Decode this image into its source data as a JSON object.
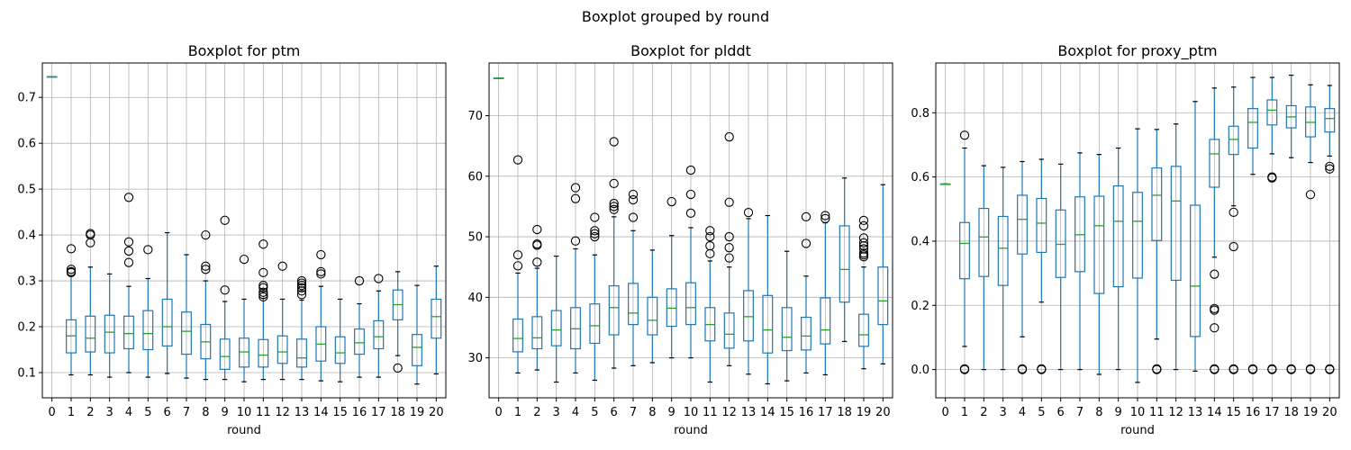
{
  "figure": {
    "suptitle": "Boxplot grouped by round",
    "colors": {
      "box": "#1f77b4",
      "median": "#2ca02c",
      "grid": "#b0b0b0",
      "flier": "#000000"
    }
  },
  "chart_data": [
    {
      "type": "boxplot",
      "title": "Boxplot for ptm",
      "xlabel": "round",
      "ylabel": "",
      "categories": [
        "0",
        "1",
        "2",
        "3",
        "4",
        "5",
        "6",
        "7",
        "8",
        "9",
        "10",
        "11",
        "12",
        "13",
        "14",
        "15",
        "16",
        "17",
        "18",
        "19",
        "20"
      ],
      "ylim": [
        0.045,
        0.775
      ],
      "yticks": [
        0.1,
        0.2,
        0.3,
        0.4,
        0.5,
        0.6,
        0.7
      ],
      "ytick_labels": [
        "0.1",
        "0.2",
        "0.3",
        "0.4",
        "0.5",
        "0.6",
        "0.7"
      ],
      "grid": true,
      "boxes": [
        {
          "whislo": 0.745,
          "q1": 0.745,
          "med": 0.745,
          "q3": 0.745,
          "whishi": 0.745,
          "fliers": []
        },
        {
          "whislo": 0.095,
          "q1": 0.143,
          "med": 0.18,
          "q3": 0.215,
          "whishi": 0.31,
          "fliers": [
            0.318,
            0.32,
            0.325,
            0.37
          ]
        },
        {
          "whislo": 0.095,
          "q1": 0.145,
          "med": 0.175,
          "q3": 0.223,
          "whishi": 0.33,
          "fliers": [
            0.383,
            0.4,
            0.403
          ]
        },
        {
          "whislo": 0.09,
          "q1": 0.143,
          "med": 0.188,
          "q3": 0.225,
          "whishi": 0.315,
          "fliers": []
        },
        {
          "whislo": 0.1,
          "q1": 0.152,
          "med": 0.185,
          "q3": 0.223,
          "whishi": 0.288,
          "fliers": [
            0.34,
            0.365,
            0.385,
            0.482
          ]
        },
        {
          "whislo": 0.09,
          "q1": 0.15,
          "med": 0.185,
          "q3": 0.235,
          "whishi": 0.305,
          "fliers": [
            0.368
          ]
        },
        {
          "whislo": 0.098,
          "q1": 0.158,
          "med": 0.2,
          "q3": 0.26,
          "whishi": 0.405,
          "fliers": []
        },
        {
          "whislo": 0.088,
          "q1": 0.14,
          "med": 0.19,
          "q3": 0.232,
          "whishi": 0.357,
          "fliers": []
        },
        {
          "whislo": 0.085,
          "q1": 0.13,
          "med": 0.167,
          "q3": 0.205,
          "whishi": 0.3,
          "fliers": [
            0.325,
            0.332,
            0.4
          ]
        },
        {
          "whislo": 0.085,
          "q1": 0.107,
          "med": 0.135,
          "q3": 0.173,
          "whishi": 0.255,
          "fliers": [
            0.28,
            0.432
          ]
        },
        {
          "whislo": 0.08,
          "q1": 0.112,
          "med": 0.145,
          "q3": 0.175,
          "whishi": 0.26,
          "fliers": [
            0.347
          ]
        },
        {
          "whislo": 0.085,
          "q1": 0.112,
          "med": 0.138,
          "q3": 0.172,
          "whishi": 0.262,
          "fliers": [
            0.265,
            0.27,
            0.275,
            0.285,
            0.29,
            0.318,
            0.38
          ]
        },
        {
          "whislo": 0.085,
          "q1": 0.12,
          "med": 0.145,
          "q3": 0.18,
          "whishi": 0.26,
          "fliers": [
            0.332
          ]
        },
        {
          "whislo": 0.085,
          "q1": 0.112,
          "med": 0.132,
          "q3": 0.173,
          "whishi": 0.258,
          "fliers": [
            0.27,
            0.278,
            0.285,
            0.29,
            0.295,
            0.3
          ]
        },
        {
          "whislo": 0.082,
          "q1": 0.125,
          "med": 0.162,
          "q3": 0.2,
          "whishi": 0.288,
          "fliers": [
            0.315,
            0.32,
            0.357
          ]
        },
        {
          "whislo": 0.08,
          "q1": 0.12,
          "med": 0.143,
          "q3": 0.178,
          "whishi": 0.26,
          "fliers": []
        },
        {
          "whislo": 0.09,
          "q1": 0.14,
          "med": 0.165,
          "q3": 0.195,
          "whishi": 0.25,
          "fliers": [
            0.3
          ]
        },
        {
          "whislo": 0.09,
          "q1": 0.152,
          "med": 0.178,
          "q3": 0.213,
          "whishi": 0.278,
          "fliers": [
            0.305
          ]
        },
        {
          "whislo": 0.137,
          "q1": 0.215,
          "med": 0.248,
          "q3": 0.28,
          "whishi": 0.32,
          "fliers": [
            0.11
          ]
        },
        {
          "whislo": 0.075,
          "q1": 0.115,
          "med": 0.155,
          "q3": 0.183,
          "whishi": 0.29,
          "fliers": []
        },
        {
          "whislo": 0.097,
          "q1": 0.175,
          "med": 0.222,
          "q3": 0.26,
          "whishi": 0.332,
          "fliers": []
        }
      ]
    },
    {
      "type": "boxplot",
      "title": "Boxplot for plddt",
      "xlabel": "round",
      "ylabel": "",
      "categories": [
        "0",
        "1",
        "2",
        "3",
        "4",
        "5",
        "6",
        "7",
        "8",
        "9",
        "10",
        "11",
        "12",
        "13",
        "14",
        "15",
        "16",
        "17",
        "18",
        "19",
        "20"
      ],
      "ylim": [
        23.4,
        78.7
      ],
      "yticks": [
        30,
        40,
        50,
        60,
        70
      ],
      "ytick_labels": [
        "30",
        "40",
        "50",
        "60",
        "70"
      ],
      "grid": true,
      "boxes": [
        {
          "whislo": 76.2,
          "q1": 76.2,
          "med": 76.2,
          "q3": 76.2,
          "whishi": 76.2,
          "fliers": []
        },
        {
          "whislo": 27.5,
          "q1": 31.0,
          "med": 33.2,
          "q3": 36.4,
          "whishi": 44.0,
          "fliers": [
            45.2,
            47.0,
            62.7
          ]
        },
        {
          "whislo": 28.0,
          "q1": 31.5,
          "med": 33.3,
          "q3": 36.8,
          "whishi": 44.8,
          "fliers": [
            45.8,
            48.6,
            48.8,
            51.2
          ]
        },
        {
          "whislo": 26.0,
          "q1": 32.0,
          "med": 34.6,
          "q3": 37.8,
          "whishi": 46.8,
          "fliers": []
        },
        {
          "whislo": 27.5,
          "q1": 31.5,
          "med": 34.8,
          "q3": 38.3,
          "whishi": 48.0,
          "fliers": [
            49.3,
            56.3,
            58.1
          ]
        },
        {
          "whislo": 26.3,
          "q1": 32.4,
          "med": 35.3,
          "q3": 38.9,
          "whishi": 47.0,
          "fliers": [
            50.0,
            50.5,
            51.0,
            53.2
          ]
        },
        {
          "whislo": 28.3,
          "q1": 33.8,
          "med": 38.3,
          "q3": 41.9,
          "whishi": 53.3,
          "fliers": [
            54.5,
            55.0,
            55.5,
            58.8,
            65.7
          ]
        },
        {
          "whislo": 28.7,
          "q1": 35.5,
          "med": 37.4,
          "q3": 42.3,
          "whishi": 51.0,
          "fliers": [
            53.2,
            56.1,
            57.0
          ]
        },
        {
          "whislo": 29.2,
          "q1": 33.8,
          "med": 36.2,
          "q3": 40.0,
          "whishi": 47.8,
          "fliers": []
        },
        {
          "whislo": 30.0,
          "q1": 35.2,
          "med": 38.2,
          "q3": 41.4,
          "whishi": 50.2,
          "fliers": [
            55.8
          ]
        },
        {
          "whislo": 30.0,
          "q1": 35.5,
          "med": 38.3,
          "q3": 42.4,
          "whishi": 51.5,
          "fliers": [
            53.9,
            57.0,
            61.0
          ]
        },
        {
          "whislo": 26.0,
          "q1": 32.8,
          "med": 35.5,
          "q3": 38.3,
          "whishi": 46.0,
          "fliers": [
            47.2,
            48.5,
            50.0,
            51.0
          ]
        },
        {
          "whislo": 28.7,
          "q1": 31.6,
          "med": 33.9,
          "q3": 37.4,
          "whishi": 45.0,
          "fliers": [
            46.5,
            48.2,
            50.0,
            55.7,
            66.5
          ]
        },
        {
          "whislo": 27.3,
          "q1": 32.8,
          "med": 36.8,
          "q3": 41.1,
          "whishi": 53.0,
          "fliers": [
            54.0
          ]
        },
        {
          "whislo": 25.7,
          "q1": 30.8,
          "med": 34.6,
          "q3": 40.3,
          "whishi": 53.5,
          "fliers": []
        },
        {
          "whislo": 26.2,
          "q1": 31.2,
          "med": 33.4,
          "q3": 38.3,
          "whishi": 47.6,
          "fliers": []
        },
        {
          "whislo": 27.5,
          "q1": 31.3,
          "med": 33.6,
          "q3": 36.7,
          "whishi": 43.5,
          "fliers": [
            48.9,
            53.3
          ]
        },
        {
          "whislo": 27.2,
          "q1": 32.3,
          "med": 34.6,
          "q3": 39.9,
          "whishi": 52.3,
          "fliers": [
            53.0,
            53.5
          ]
        },
        {
          "whislo": 32.7,
          "q1": 39.2,
          "med": 44.6,
          "q3": 51.8,
          "whishi": 59.7,
          "fliers": []
        },
        {
          "whislo": 28.2,
          "q1": 31.9,
          "med": 33.8,
          "q3": 37.2,
          "whishi": 45.0,
          "fliers": [
            46.7,
            47.0,
            47.3,
            48.0,
            48.5,
            49.0,
            49.8,
            51.8,
            52.7
          ]
        },
        {
          "whislo": 29.0,
          "q1": 35.5,
          "med": 39.4,
          "q3": 45.0,
          "whishi": 58.6,
          "fliers": []
        }
      ]
    },
    {
      "type": "boxplot",
      "title": "Boxplot for proxy_ptm",
      "xlabel": "round",
      "ylabel": "",
      "categories": [
        "0",
        "1",
        "2",
        "3",
        "4",
        "5",
        "6",
        "7",
        "8",
        "9",
        "10",
        "11",
        "12",
        "13",
        "14",
        "15",
        "16",
        "17",
        "18",
        "19",
        "20"
      ],
      "ylim": [
        -0.088,
        0.955
      ],
      "yticks": [
        0.0,
        0.2,
        0.4,
        0.6,
        0.8
      ],
      "ytick_labels": [
        "0.0",
        "0.2",
        "0.4",
        "0.6",
        "0.8"
      ],
      "grid": true,
      "boxes": [
        {
          "whislo": 0.578,
          "q1": 0.578,
          "med": 0.578,
          "q3": 0.578,
          "whishi": 0.578,
          "fliers": []
        },
        {
          "whislo": 0.072,
          "q1": 0.283,
          "med": 0.393,
          "q3": 0.458,
          "whishi": 0.69,
          "fliers": [
            0.0,
            0.002,
            0.73
          ]
        },
        {
          "whislo": 0.0,
          "q1": 0.29,
          "med": 0.413,
          "q3": 0.502,
          "whishi": 0.635,
          "fliers": []
        },
        {
          "whislo": 0.0,
          "q1": 0.262,
          "med": 0.378,
          "q3": 0.477,
          "whishi": 0.63,
          "fliers": []
        },
        {
          "whislo": 0.102,
          "q1": 0.36,
          "med": 0.468,
          "q3": 0.543,
          "whishi": 0.648,
          "fliers": [
            0.0,
            0.002
          ]
        },
        {
          "whislo": 0.21,
          "q1": 0.365,
          "med": 0.456,
          "q3": 0.533,
          "whishi": 0.655,
          "fliers": [
            0.0,
            0.002
          ]
        },
        {
          "whislo": 0.0,
          "q1": 0.287,
          "med": 0.39,
          "q3": 0.497,
          "whishi": 0.64,
          "fliers": []
        },
        {
          "whislo": 0.0,
          "q1": 0.305,
          "med": 0.42,
          "q3": 0.538,
          "whishi": 0.675,
          "fliers": []
        },
        {
          "whislo": -0.015,
          "q1": 0.237,
          "med": 0.448,
          "q3": 0.54,
          "whishi": 0.67,
          "fliers": []
        },
        {
          "whislo": 0.0,
          "q1": 0.258,
          "med": 0.462,
          "q3": 0.572,
          "whishi": 0.69,
          "fliers": []
        },
        {
          "whislo": -0.04,
          "q1": 0.285,
          "med": 0.462,
          "q3": 0.552,
          "whishi": 0.75,
          "fliers": []
        },
        {
          "whislo": 0.095,
          "q1": 0.402,
          "med": 0.543,
          "q3": 0.628,
          "whishi": 0.748,
          "fliers": [
            0.0,
            0.002
          ]
        },
        {
          "whislo": 0.0,
          "q1": 0.278,
          "med": 0.525,
          "q3": 0.633,
          "whishi": 0.765,
          "fliers": []
        },
        {
          "whislo": -0.005,
          "q1": 0.103,
          "med": 0.26,
          "q3": 0.512,
          "whishi": 0.835,
          "fliers": []
        },
        {
          "whislo": 0.35,
          "q1": 0.568,
          "med": 0.672,
          "q3": 0.717,
          "whishi": 0.877,
          "fliers": [
            0.0,
            0.002,
            0.13,
            0.185,
            0.19,
            0.297
          ]
        },
        {
          "whislo": 0.51,
          "q1": 0.67,
          "med": 0.717,
          "q3": 0.758,
          "whishi": 0.88,
          "fliers": [
            0.0,
            0.002,
            0.383,
            0.49
          ]
        },
        {
          "whislo": 0.608,
          "q1": 0.69,
          "med": 0.77,
          "q3": 0.813,
          "whishi": 0.91,
          "fliers": [
            0.0,
            0.002
          ]
        },
        {
          "whislo": 0.672,
          "q1": 0.762,
          "med": 0.808,
          "q3": 0.84,
          "whishi": 0.91,
          "fliers": [
            0.0,
            0.002,
            0.597,
            0.6
          ]
        },
        {
          "whislo": 0.66,
          "q1": 0.753,
          "med": 0.787,
          "q3": 0.822,
          "whishi": 0.917,
          "fliers": [
            0.0,
            0.002
          ]
        },
        {
          "whislo": 0.645,
          "q1": 0.725,
          "med": 0.77,
          "q3": 0.818,
          "whishi": 0.887,
          "fliers": [
            0.0,
            0.002,
            0.545
          ]
        },
        {
          "whislo": 0.665,
          "q1": 0.74,
          "med": 0.782,
          "q3": 0.813,
          "whishi": 0.885,
          "fliers": [
            0.0,
            0.002,
            0.625,
            0.633
          ]
        }
      ]
    }
  ]
}
